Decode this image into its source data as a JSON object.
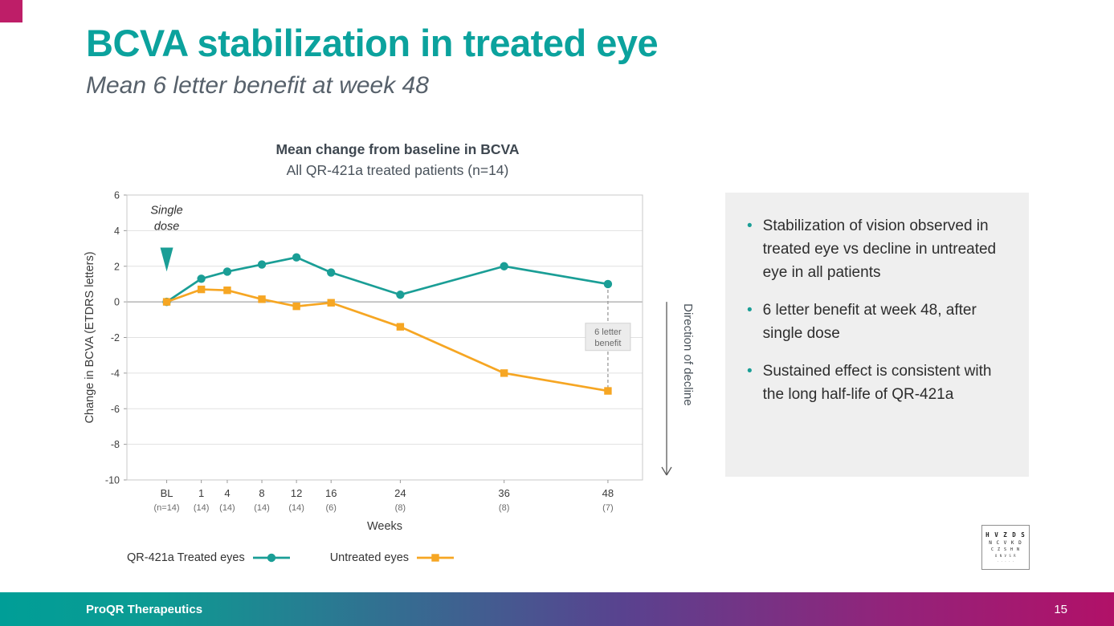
{
  "slide": {
    "title": "BCVA stabilization in treated eye",
    "subtitle": "Mean 6 letter benefit at week 48",
    "footer_brand": "ProQR Therapeutics",
    "page_number": "15",
    "accent_colors": {
      "teal": "#0BA29D",
      "magenta": "#BE1E68"
    }
  },
  "chart": {
    "title": "Mean change from baseline in BCVA",
    "subtitle": "All QR-421a treated patients (n=14)",
    "y_axis_label": "Change in BCVA (ETDRS letters)",
    "x_axis_label": "Weeks",
    "annotations": {
      "single_dose_lines": [
        "Single",
        "dose"
      ],
      "benefit_lines": [
        "6 letter",
        "benefit"
      ],
      "direction_of_decline": "Direction of decline"
    }
  },
  "chart_data": {
    "type": "line",
    "categories": [
      "BL",
      "1",
      "4",
      "8",
      "12",
      "16",
      "24",
      "36",
      "48"
    ],
    "x_weeks": [
      -3,
      1,
      4,
      8,
      12,
      16,
      24,
      36,
      48
    ],
    "n_labels": [
      "(n=14)",
      "(14)",
      "(14)",
      "(14)",
      "(14)",
      "(6)",
      "(8)",
      "(8)",
      "(7)"
    ],
    "series": [
      {
        "name": "QR-421a Treated eyes",
        "color": "#1A9E96",
        "marker": "circle",
        "values": [
          0,
          1.3,
          1.7,
          2.1,
          2.5,
          1.65,
          0.4,
          2.0,
          1.0
        ]
      },
      {
        "name": "Untreated eyes",
        "color": "#F6A623",
        "marker": "square",
        "values": [
          0,
          0.7,
          0.65,
          0.15,
          -0.25,
          -0.05,
          -1.4,
          -4.0,
          -5.0
        ]
      }
    ],
    "ylim": [
      -10,
      6
    ],
    "yticks": [
      6,
      4,
      2,
      0,
      -2,
      -4,
      -6,
      -8,
      -10
    ],
    "grid": "horizontal",
    "legend_position": "bottom"
  },
  "key_points": [
    "Stabilization of vision observed in treated eye vs decline in untreated eye in all patients",
    "6 letter benefit at week 48, after single dose",
    "Sustained effect is consistent with the long half-life of QR-421a"
  ],
  "eye_chart_icon": {
    "rows": [
      "H V Z D S",
      "N C V K D",
      "C Z S H N",
      "O N V S R",
      "· · · · ·"
    ]
  }
}
